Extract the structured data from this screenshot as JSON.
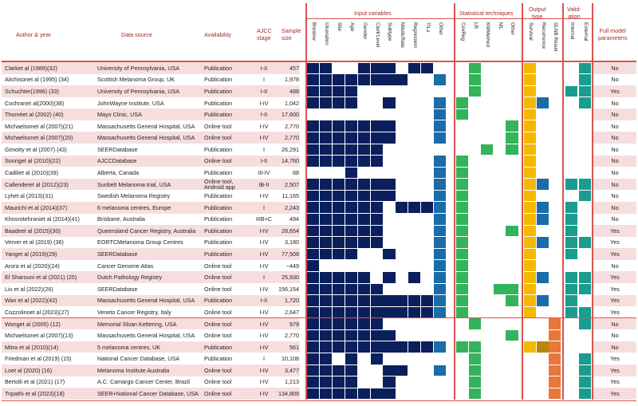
{
  "header": {
    "author_year": "Author & year",
    "data_source": "Data source",
    "availability": "Availability",
    "ajcc": [
      "AJCC",
      "stage"
    ],
    "sample": [
      "Sample",
      "size"
    ],
    "groups": {
      "input": "Input variables",
      "stat": "Statistical techniques",
      "output": [
        "Output",
        "type"
      ],
      "valid": [
        "Valid-",
        "ation"
      ],
      "full": [
        "Full model",
        "parameters"
      ]
    },
    "input_cols": [
      "Breslow",
      "Ulceration",
      "Site",
      "Age",
      "Gender",
      "Clark'Level",
      "Subtype",
      "MitoticRate",
      "Regression",
      "TILs",
      "Other"
    ],
    "stat_cols": [
      "CoxReg",
      "LR",
      "KMMethod",
      "ML",
      "Other"
    ],
    "output_cols": [
      "Survival",
      "Recurrence",
      "SLNB Result"
    ],
    "valid_cols": [
      "Internal",
      "External"
    ]
  },
  "colors": {
    "input": "#0b1f5c",
    "other_input": "#1b6ca8",
    "stat": "#33b35a",
    "survival": "#f5b800",
    "recurrence": "#1b6ca8",
    "recurrence_alt": "#b8860b",
    "slnb": "#e8773a",
    "valid": "#1a9c8e",
    "pink": "#f7dede",
    "line": "#d9534f"
  },
  "rows": [
    {
      "author": "Clarket al (1989)(32)",
      "source": "University of Pennsylvania, USA",
      "avail": "Publication",
      "stage": "I-II",
      "n": "457",
      "m": "11001110110 01000 100 01",
      "full": "No"
    },
    {
      "author": "Aitchisonet al (1995) (34)",
      "source": "Scottish Melanoma Group, UK",
      "avail": "Publication",
      "stage": "I",
      "n": "1,978",
      "m": "11111111001 01000 100 01",
      "full": "No"
    },
    {
      "author": "Schuchter(1996) (33)",
      "source": "University of Pennsylvania, USA",
      "avail": "Publication",
      "stage": "I-II",
      "n": "488",
      "m": "11110000000 01000 100 11",
      "full": "Yes"
    },
    {
      "author": "Cochranet al(2000)(38)",
      "source": "JohnWayne Institute, USA",
      "avail": "Publication",
      "stage": "I-IV",
      "n": "1,042",
      "m": "11110010001 10000 110 01",
      "full": "No"
    },
    {
      "author": "Thoméet al (2002) (40)",
      "source": "Mayo Clinic, USA",
      "avail": "Publication",
      "stage": "I-II",
      "n": "17,600",
      "m": "00000000001 10000 100 00",
      "full": "No"
    },
    {
      "author": "Michaelsonet al (2007)(21)",
      "source": "Massachusetts General Hospital, USA",
      "avail": "Online tool",
      "stage": "I-IV",
      "n": "2,770",
      "m": "11111110001 00001 100 00",
      "full": "No"
    },
    {
      "author": "Michaelsonet al (2007)(20)",
      "source": "Massachusetts General Hospital, USA",
      "avail": "Online tool",
      "stage": "I-IV",
      "n": "2,770",
      "m": "11111110001 00001 100 00",
      "full": "No"
    },
    {
      "author": "Gimotty et al (2007) (43)",
      "source": "SEERDatabase",
      "avail": "Publication",
      "stage": "I",
      "n": "26,291",
      "m": "11111100000 00101 100 00",
      "full": "No"
    },
    {
      "author": "Soonget al (2010)(22)",
      "source": "AJCCDatabase",
      "avail": "Online tool",
      "stage": "I-II",
      "n": "14,760",
      "m": "11111100001 10000 100 00",
      "full": "No"
    },
    {
      "author": "Cadiliet al (2010)(39)",
      "source": "Alberta, Canada",
      "avail": "Publication",
      "stage": "III-IV",
      "n": "68",
      "m": "00010000001 10000 100 00",
      "full": "No"
    },
    {
      "author": "Callenderet al (2012)(23)",
      "source": "Sunbelt Melanoma trial, USA",
      "source2": "",
      "avail": "Online tool,",
      "avail2": "Android app",
      "stage": "IB-II",
      "n": "2,507",
      "m": "11111110001 10000 110 11",
      "full": "No"
    },
    {
      "author": "Lyhet al (2013)(31)",
      "source": "Swedish Melanoma Registry",
      "avail": "Publication",
      "stage": "I-IV",
      "n": "11,165",
      "m": "11111110001 10000 100 01",
      "full": "No"
    },
    {
      "author": "Maurichi et al (2014)(37)",
      "source": "6 melanoma centres, Europe",
      "avail": "Publication",
      "stage": "I",
      "n": "2,243",
      "m": "11111101111 10000 110 10",
      "full": "No"
    },
    {
      "author": "Khosrotehraniet al (2014)(41)",
      "source": "Brisbane, Australia",
      "avail": "Publication",
      "stage": "IIIB+C",
      "n": "494",
      "m": "11111100001 10000 110 10",
      "full": "No"
    },
    {
      "author": "Baadeet al (2015)(30)",
      "source": "Queensland Cancer Registry, Australia",
      "avail": "Publication",
      "stage": "I-IV",
      "n": "28,654",
      "m": "11111100001 10001 100 10",
      "full": "Yes"
    },
    {
      "author": "Verver et al (2019) (36)",
      "source": "EORTCMelanoma Group Centres",
      "avail": "Publication",
      "stage": "I-IV",
      "n": "3,180",
      "m": "11111100001 10000 110 11",
      "full": "Yes"
    },
    {
      "author": "Yanget al (2019)(29)",
      "source": "SEERDatabase",
      "avail": "Publication",
      "stage": "I-IV",
      "n": "77,508",
      "m": "11110010001 10000 100 10",
      "full": "Yes"
    },
    {
      "author": "Arora et al (2020)(24)",
      "source": "Cancer Genome Atlas",
      "avail": "Online tool",
      "stage": "I-IV",
      "n": "~449",
      "m": "10000000001 10000 100 00",
      "full": "No"
    },
    {
      "author": "El Sharouni et al (2021) (25)",
      "source": "Dutch Pathology Registry",
      "avail": "Online tool",
      "stage": "I",
      "n": "25,930",
      "m": "11111010101 10000 110 11",
      "full": "Yes"
    },
    {
      "author": "Liu et al (2022)(26)",
      "source": "SEERDatabase",
      "avail": "Online tool",
      "stage": "I-IV",
      "n": "156,154",
      "m": "11111100001 10011 100 11",
      "full": "Yes"
    },
    {
      "author": "Wan et al (2022)(42)",
      "source": "Massachusetts General Hospital, USA",
      "avail": "Publication",
      "stage": "I-II",
      "n": "1,720",
      "m": "11111111111 10001 110 10",
      "full": "Yes"
    },
    {
      "author": "Cozzolinoet al (2023)(27)",
      "source": "Veneto Cancer Registry, Italy",
      "avail": "Online tool",
      "stage": "I-IV",
      "n": "2,647",
      "m": "11111111111 10000 100 11",
      "full": "Yes"
    },
    {
      "author": "Wonget al (2005) (12)",
      "source": "Memorial Sloan Kettering, USA",
      "avail": "Online tool",
      "stage": "I-IV",
      "n": "979",
      "m": "11111100000 01000 001 01",
      "full": "No"
    },
    {
      "author": "Michaelsonet al (2007)(13)",
      "source": "Massachusetts General Hospital, USA",
      "avail": "Online tool",
      "stage": "I-IV",
      "n": "2,770",
      "m": "11111110000 00001 001 00",
      "full": "No"
    },
    {
      "author": "Mitra et al (2010)(14)",
      "source": "5 melanoma centres, UK",
      "avail": "Publication",
      "stage": "I-IV",
      "n": "561",
      "m": "11111111111 11000 111 00",
      "full": "No"
    },
    {
      "author": "Friedman et al (2019) (15)",
      "source": "National Cancer Database, USA",
      "avail": "Publication",
      "stage": "I",
      "n": "10,108",
      "m": "11010100000 01000 001 01",
      "full": "Yes"
    },
    {
      "author": "Loet al (2020) (16)",
      "source": "Melanoma Institute Australia",
      "avail": "Online tool",
      "stage": "I-IV",
      "n": "3,477",
      "m": "11110011001 01000 001 01",
      "full": "Yes"
    },
    {
      "author": "Bertolli et al (2021) (17)",
      "source": "A.C. Camargo Cancer Center, Brazil",
      "avail": "Online tool",
      "stage": "I-IV",
      "n": "1,213",
      "m": "11110010000 01000 001 01",
      "full": "Yes"
    },
    {
      "author": "Tripathi et al (2023)(18)",
      "source": "SEER+National Cancer Database, USA",
      "avail": "Online tool",
      "stage": "I-IV",
      "n": "134,809",
      "m": "11111110000 01000 001 01",
      "full": "Yes"
    }
  ]
}
